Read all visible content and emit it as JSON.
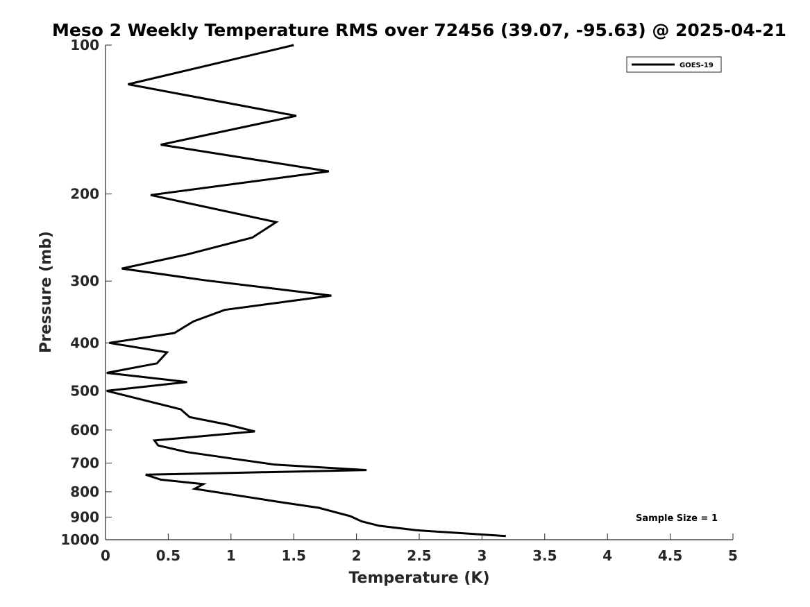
{
  "chart_data": {
    "type": "line",
    "title": "Meso 2 Weekly Temperature RMS over 72456 (39.07, -95.63) @ 2025-04-21",
    "xlabel": "Temperature (K)",
    "ylabel": "Pressure (mb)",
    "xlim": [
      0,
      5
    ],
    "ylim": [
      100,
      1000
    ],
    "y_scale": "log",
    "y_reversed": true,
    "x_ticks": [
      0,
      0.5,
      1,
      1.5,
      2,
      2.5,
      3,
      3.5,
      4,
      4.5,
      5
    ],
    "x_tick_labels": [
      "0",
      "0.5",
      "1",
      "1.5",
      "2",
      "2.5",
      "3",
      "3.5",
      "4",
      "4.5",
      "5"
    ],
    "y_ticks": [
      100,
      200,
      300,
      400,
      500,
      600,
      700,
      800,
      900,
      1000
    ],
    "y_tick_labels": [
      "100",
      "200",
      "300",
      "400",
      "500",
      "600",
      "700",
      "800",
      "900",
      "1000"
    ],
    "grid": false,
    "legend_position": "top-right",
    "annotation": "Sample Size = 1",
    "series": [
      {
        "name": "GOES-19",
        "color": "#000000",
        "points": [
          [
            1.5,
            100
          ],
          [
            0.18,
            120
          ],
          [
            1.52,
            139
          ],
          [
            0.44,
            159
          ],
          [
            1.78,
            180
          ],
          [
            0.36,
            201
          ],
          [
            1.36,
            228
          ],
          [
            1.17,
            245
          ],
          [
            0.65,
            265
          ],
          [
            0.13,
            283
          ],
          [
            0.8,
            299
          ],
          [
            1.8,
            321
          ],
          [
            0.95,
            343
          ],
          [
            0.7,
            362
          ],
          [
            0.55,
            382
          ],
          [
            0.03,
            400
          ],
          [
            0.49,
            418
          ],
          [
            0.41,
            440
          ],
          [
            0.01,
            460
          ],
          [
            0.65,
            480
          ],
          [
            0.01,
            500
          ],
          [
            0.6,
            545
          ],
          [
            0.67,
            565
          ],
          [
            0.97,
            585
          ],
          [
            1.19,
            604
          ],
          [
            0.39,
            630
          ],
          [
            0.42,
            645
          ],
          [
            0.65,
            665
          ],
          [
            1.0,
            685
          ],
          [
            1.35,
            705
          ],
          [
            2.08,
            723
          ],
          [
            0.32,
            739
          ],
          [
            0.44,
            756
          ],
          [
            0.78,
            772
          ],
          [
            0.71,
            789
          ],
          [
            1.4,
            840
          ],
          [
            1.7,
            862
          ],
          [
            1.95,
            896
          ],
          [
            2.04,
            918
          ],
          [
            2.18,
            937
          ],
          [
            2.48,
            957
          ],
          [
            3.19,
            983
          ]
        ]
      }
    ]
  }
}
